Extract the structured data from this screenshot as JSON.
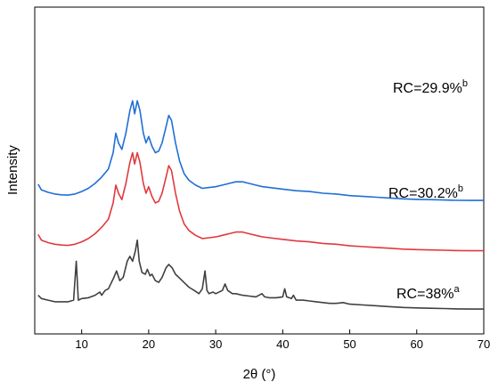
{
  "chart_data": {
    "type": "line",
    "xlabel": "2θ (°)",
    "ylabel": "Intensity",
    "xlim": [
      3,
      70
    ],
    "x_ticks": [
      10,
      20,
      30,
      40,
      50,
      60,
      70
    ],
    "y_ticks_shown": false,
    "grid": false,
    "series": [
      {
        "name": "RC=29.9%",
        "label_main": "RC=29.9%",
        "label_sup": "b",
        "color": "#1f6fd6",
        "offset": 0.67,
        "points": [
          [
            3.5,
            0.105
          ],
          [
            4,
            0.07
          ],
          [
            5,
            0.055
          ],
          [
            6,
            0.045
          ],
          [
            7,
            0.04
          ],
          [
            8,
            0.038
          ],
          [
            9,
            0.045
          ],
          [
            10,
            0.06
          ],
          [
            11,
            0.08
          ],
          [
            12,
            0.11
          ],
          [
            13,
            0.15
          ],
          [
            14,
            0.2
          ],
          [
            14.7,
            0.3
          ],
          [
            15.1,
            0.42
          ],
          [
            15.5,
            0.36
          ],
          [
            16,
            0.32
          ],
          [
            16.6,
            0.42
          ],
          [
            17.2,
            0.56
          ],
          [
            17.6,
            0.62
          ],
          [
            17.9,
            0.54
          ],
          [
            18.3,
            0.62
          ],
          [
            18.7,
            0.56
          ],
          [
            19.2,
            0.42
          ],
          [
            19.6,
            0.36
          ],
          [
            20,
            0.4
          ],
          [
            20.5,
            0.34
          ],
          [
            21,
            0.3
          ],
          [
            21.5,
            0.31
          ],
          [
            22,
            0.36
          ],
          [
            22.6,
            0.46
          ],
          [
            23,
            0.53
          ],
          [
            23.4,
            0.5
          ],
          [
            24,
            0.36
          ],
          [
            24.6,
            0.25
          ],
          [
            25.3,
            0.17
          ],
          [
            26,
            0.13
          ],
          [
            27,
            0.1
          ],
          [
            28,
            0.08
          ],
          [
            29,
            0.085
          ],
          [
            30,
            0.09
          ],
          [
            31,
            0.1
          ],
          [
            32,
            0.11
          ],
          [
            33,
            0.12
          ],
          [
            34,
            0.12
          ],
          [
            35,
            0.11
          ],
          [
            36,
            0.1
          ],
          [
            37,
            0.09
          ],
          [
            38,
            0.085
          ],
          [
            40,
            0.075
          ],
          [
            42,
            0.065
          ],
          [
            44,
            0.06
          ],
          [
            46,
            0.05
          ],
          [
            48,
            0.045
          ],
          [
            50,
            0.035
          ],
          [
            52,
            0.03
          ],
          [
            54,
            0.025
          ],
          [
            56,
            0.02
          ],
          [
            58,
            0.015
          ],
          [
            60,
            0.012
          ],
          [
            62,
            0.01
          ],
          [
            64,
            0.008
          ],
          [
            66,
            0.006
          ],
          [
            68,
            0.005
          ],
          [
            70,
            0.005
          ]
        ]
      },
      {
        "name": "RC=30.2%",
        "label_main": "RC=30.2%",
        "label_sup": "b",
        "color": "#e0393e",
        "offset": 0.36,
        "points": [
          [
            3.5,
            0.105
          ],
          [
            4,
            0.07
          ],
          [
            5,
            0.055
          ],
          [
            6,
            0.045
          ],
          [
            7,
            0.04
          ],
          [
            8,
            0.038
          ],
          [
            9,
            0.045
          ],
          [
            10,
            0.06
          ],
          [
            11,
            0.08
          ],
          [
            12,
            0.11
          ],
          [
            13,
            0.15
          ],
          [
            14,
            0.2
          ],
          [
            14.7,
            0.3
          ],
          [
            15.1,
            0.41
          ],
          [
            15.5,
            0.36
          ],
          [
            16,
            0.32
          ],
          [
            16.6,
            0.42
          ],
          [
            17.2,
            0.55
          ],
          [
            17.6,
            0.61
          ],
          [
            17.9,
            0.54
          ],
          [
            18.3,
            0.61
          ],
          [
            18.7,
            0.55
          ],
          [
            19.2,
            0.42
          ],
          [
            19.6,
            0.36
          ],
          [
            20,
            0.4
          ],
          [
            20.5,
            0.34
          ],
          [
            21,
            0.3
          ],
          [
            21.5,
            0.31
          ],
          [
            22,
            0.36
          ],
          [
            22.6,
            0.46
          ],
          [
            23,
            0.53
          ],
          [
            23.4,
            0.5
          ],
          [
            24,
            0.36
          ],
          [
            24.6,
            0.25
          ],
          [
            25.3,
            0.17
          ],
          [
            26,
            0.13
          ],
          [
            27,
            0.1
          ],
          [
            28,
            0.08
          ],
          [
            29,
            0.085
          ],
          [
            30,
            0.09
          ],
          [
            31,
            0.1
          ],
          [
            32,
            0.11
          ],
          [
            33,
            0.12
          ],
          [
            34,
            0.12
          ],
          [
            35,
            0.11
          ],
          [
            36,
            0.1
          ],
          [
            37,
            0.09
          ],
          [
            38,
            0.085
          ],
          [
            40,
            0.075
          ],
          [
            42,
            0.065
          ],
          [
            44,
            0.06
          ],
          [
            46,
            0.05
          ],
          [
            48,
            0.045
          ],
          [
            50,
            0.035
          ],
          [
            52,
            0.03
          ],
          [
            54,
            0.025
          ],
          [
            56,
            0.02
          ],
          [
            58,
            0.015
          ],
          [
            60,
            0.012
          ],
          [
            62,
            0.01
          ],
          [
            64,
            0.008
          ],
          [
            66,
            0.006
          ],
          [
            68,
            0.005
          ],
          [
            70,
            0.005
          ]
        ]
      },
      {
        "name": "RC=38%",
        "label_main": "RC=38%",
        "label_sup": "a",
        "color": "#404040",
        "offset": 0.0,
        "points": [
          [
            3.5,
            0.09
          ],
          [
            4,
            0.07
          ],
          [
            5,
            0.06
          ],
          [
            6,
            0.05
          ],
          [
            7,
            0.05
          ],
          [
            8,
            0.05
          ],
          [
            8.8,
            0.06
          ],
          [
            9.2,
            0.3
          ],
          [
            9.5,
            0.06
          ],
          [
            10,
            0.07
          ],
          [
            11,
            0.075
          ],
          [
            12,
            0.09
          ],
          [
            12.7,
            0.11
          ],
          [
            13,
            0.09
          ],
          [
            13.5,
            0.12
          ],
          [
            14,
            0.13
          ],
          [
            14.8,
            0.2
          ],
          [
            15.2,
            0.24
          ],
          [
            15.7,
            0.18
          ],
          [
            16.2,
            0.2
          ],
          [
            16.8,
            0.3
          ],
          [
            17.2,
            0.33
          ],
          [
            17.6,
            0.3
          ],
          [
            18,
            0.36
          ],
          [
            18.3,
            0.43
          ],
          [
            18.6,
            0.3
          ],
          [
            19,
            0.23
          ],
          [
            19.5,
            0.22
          ],
          [
            19.8,
            0.25
          ],
          [
            20.2,
            0.21
          ],
          [
            20.5,
            0.22
          ],
          [
            21,
            0.18
          ],
          [
            21.5,
            0.17
          ],
          [
            22,
            0.2
          ],
          [
            22.6,
            0.26
          ],
          [
            23,
            0.28
          ],
          [
            23.5,
            0.26
          ],
          [
            24,
            0.22
          ],
          [
            24.5,
            0.2
          ],
          [
            25,
            0.18
          ],
          [
            25.5,
            0.16
          ],
          [
            26,
            0.14
          ],
          [
            26.8,
            0.12
          ],
          [
            27.5,
            0.1
          ],
          [
            28,
            0.13
          ],
          [
            28.4,
            0.24
          ],
          [
            28.7,
            0.12
          ],
          [
            29,
            0.1
          ],
          [
            29.6,
            0.11
          ],
          [
            30,
            0.1
          ],
          [
            31,
            0.12
          ],
          [
            31.4,
            0.16
          ],
          [
            31.8,
            0.12
          ],
          [
            32.5,
            0.1
          ],
          [
            33,
            0.1
          ],
          [
            34,
            0.09
          ],
          [
            35,
            0.085
          ],
          [
            36,
            0.08
          ],
          [
            36.9,
            0.1
          ],
          [
            37.3,
            0.08
          ],
          [
            38,
            0.075
          ],
          [
            39,
            0.075
          ],
          [
            40,
            0.08
          ],
          [
            40.3,
            0.13
          ],
          [
            40.6,
            0.08
          ],
          [
            41.3,
            0.07
          ],
          [
            41.6,
            0.09
          ],
          [
            42,
            0.06
          ],
          [
            43,
            0.06
          ],
          [
            44,
            0.055
          ],
          [
            45,
            0.05
          ],
          [
            46,
            0.045
          ],
          [
            47,
            0.04
          ],
          [
            48,
            0.04
          ],
          [
            49,
            0.045
          ],
          [
            50,
            0.035
          ],
          [
            52,
            0.03
          ],
          [
            54,
            0.025
          ],
          [
            56,
            0.02
          ],
          [
            58,
            0.015
          ],
          [
            60,
            0.012
          ],
          [
            62,
            0.01
          ],
          [
            64,
            0.008
          ],
          [
            66,
            0.006
          ],
          [
            68,
            0.005
          ],
          [
            70,
            0.005
          ]
        ]
      }
    ]
  }
}
